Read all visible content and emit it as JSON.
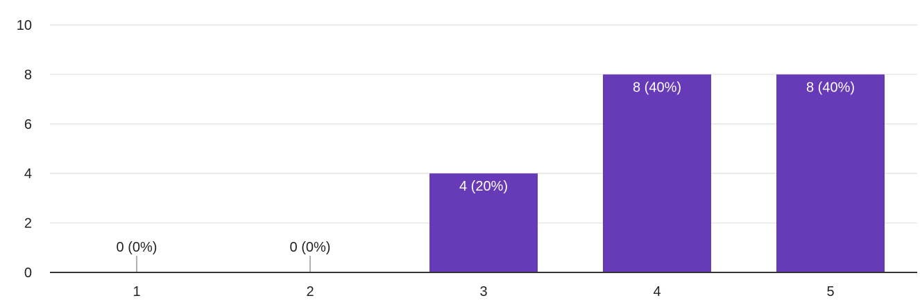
{
  "chart_data": {
    "type": "bar",
    "title": "",
    "xlabel": "",
    "ylabel": "",
    "categories": [
      "1",
      "2",
      "3",
      "4",
      "5"
    ],
    "values": [
      0,
      0,
      4,
      8,
      8
    ],
    "data_labels": [
      "0 (0%)",
      "0 (0%)",
      "4 (20%)",
      "8 (40%)",
      "8 (40%)"
    ],
    "ylim": [
      0,
      10
    ],
    "y_ticks": [
      "0",
      "2",
      "4",
      "6",
      "8",
      "10"
    ],
    "grid": true,
    "legend": "none",
    "colors": {
      "bar": "#673ab7",
      "grid": "#e6e6e6",
      "axis": "#333333",
      "label_inside": "#ffffff",
      "label_outside": "#222222"
    }
  }
}
